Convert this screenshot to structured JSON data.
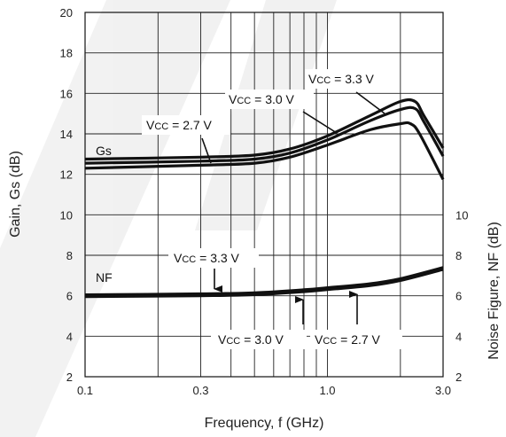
{
  "chart_data": {
    "type": "line",
    "xlabel": "Frequency, f (GHz)",
    "ylabel_left": "Gain, Gs (dB)",
    "ylabel_right": "Noise Figure, NF (dB)",
    "xscale": "log",
    "xlim": [
      0.1,
      3.0
    ],
    "ylim_left": [
      2,
      20
    ],
    "ylim_right": [
      2,
      10
    ],
    "grid": true,
    "x_tick_labels": [
      "0.1",
      "0.3",
      "1.0",
      "3.0"
    ],
    "y_tick_labels_left": [
      "2",
      "4",
      "6",
      "8",
      "10",
      "12",
      "14",
      "16",
      "18",
      "20"
    ],
    "y_tick_labels_right": [
      "2",
      "4",
      "6",
      "8",
      "10"
    ],
    "group_labels": {
      "gain": "Gs",
      "noise": "NF"
    },
    "gain_series": [
      {
        "vcc": "3.3 V",
        "x": [
          0.1,
          0.3,
          0.5,
          0.7,
          1.0,
          1.5,
          2.0,
          2.3,
          2.5,
          3.0
        ],
        "y": [
          12.75,
          12.85,
          12.95,
          13.25,
          13.9,
          14.9,
          15.6,
          15.6,
          14.9,
          13.3
        ]
      },
      {
        "vcc": "3.0 V",
        "x": [
          0.1,
          0.3,
          0.5,
          0.7,
          1.0,
          1.5,
          2.0,
          2.3,
          2.5,
          3.0
        ],
        "y": [
          12.55,
          12.65,
          12.75,
          13.05,
          13.7,
          14.65,
          15.2,
          15.25,
          14.6,
          12.9
        ]
      },
      {
        "vcc": "2.7 V",
        "x": [
          0.1,
          0.3,
          0.5,
          0.7,
          1.0,
          1.5,
          2.0,
          2.2,
          2.4,
          3.0
        ],
        "y": [
          12.3,
          12.45,
          12.55,
          12.85,
          13.45,
          14.2,
          14.5,
          14.5,
          14.0,
          11.75
        ]
      }
    ],
    "noise_series": [
      {
        "vcc": "3.3 V",
        "x": [
          0.1,
          0.3,
          0.5,
          0.8,
          1.0,
          1.5,
          2.0,
          3.0
        ],
        "y": [
          6.05,
          6.1,
          6.15,
          6.3,
          6.4,
          6.6,
          6.85,
          7.4
        ]
      },
      {
        "vcc": "3.0 V",
        "x": [
          0.1,
          0.3,
          0.5,
          0.8,
          1.0,
          1.5,
          2.0,
          3.0
        ],
        "y": [
          6.0,
          6.05,
          6.1,
          6.25,
          6.35,
          6.55,
          6.8,
          7.35
        ]
      },
      {
        "vcc": "2.7 V",
        "x": [
          0.1,
          0.3,
          0.5,
          0.8,
          1.0,
          1.5,
          2.0,
          3.0
        ],
        "y": [
          5.95,
          6.0,
          6.05,
          6.2,
          6.3,
          6.5,
          6.75,
          7.3
        ]
      }
    ],
    "annotations": [
      {
        "prefix": "V",
        "sub": "CC",
        "suffix": " = 3.3 V",
        "group": "gain"
      },
      {
        "prefix": "V",
        "sub": "CC",
        "suffix": " = 3.0 V",
        "group": "gain"
      },
      {
        "prefix": "V",
        "sub": "CC",
        "suffix": " = 2.7 V",
        "group": "gain"
      },
      {
        "prefix": "V",
        "sub": "CC",
        "suffix": " = 3.3 V",
        "group": "noise"
      },
      {
        "prefix": "V",
        "sub": "CC",
        "suffix": " = 3.0 V",
        "group": "noise"
      },
      {
        "prefix": "V",
        "sub": "CC",
        "suffix": " = 2.7 V",
        "group": "noise"
      }
    ]
  }
}
